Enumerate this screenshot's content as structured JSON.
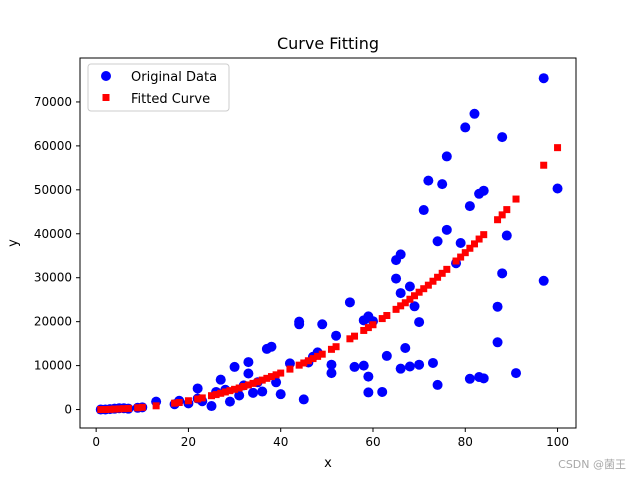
{
  "chart_data": {
    "type": "scatter",
    "title": "Curve Fitting",
    "xlabel": "x",
    "ylabel": "y",
    "xlim": [
      -3.5,
      104
    ],
    "ylim": [
      -4200,
      80000
    ],
    "xticks": [
      0,
      20,
      40,
      60,
      80,
      100
    ],
    "yticks": [
      0,
      10000,
      20000,
      30000,
      40000,
      50000,
      60000,
      70000
    ],
    "ytick_labels": [
      "0",
      "10000",
      "20000",
      "30000",
      "40000",
      "50000",
      "60000",
      "70000"
    ],
    "grid": false,
    "legend_position": "top-left",
    "series": [
      {
        "name": "Original Data",
        "marker": "circle",
        "color": "#0000ff",
        "points": [
          [
            1,
            0
          ],
          [
            2,
            0
          ],
          [
            3,
            100
          ],
          [
            4,
            200
          ],
          [
            5,
            300
          ],
          [
            6,
            300
          ],
          [
            7,
            200
          ],
          [
            9,
            400
          ],
          [
            10,
            500
          ],
          [
            13,
            1800
          ],
          [
            17,
            1200
          ],
          [
            18,
            2000
          ],
          [
            20,
            1400
          ],
          [
            22,
            4800
          ],
          [
            22,
            2500
          ],
          [
            23,
            1900
          ],
          [
            25,
            800
          ],
          [
            26,
            4000
          ],
          [
            27,
            6800
          ],
          [
            28,
            4500
          ],
          [
            29,
            1800
          ],
          [
            30,
            9700
          ],
          [
            31,
            3200
          ],
          [
            32,
            5500
          ],
          [
            33,
            8200
          ],
          [
            33,
            10800
          ],
          [
            34,
            3800
          ],
          [
            35,
            6200
          ],
          [
            36,
            4100
          ],
          [
            37,
            13800
          ],
          [
            38,
            14300
          ],
          [
            39,
            6200
          ],
          [
            40,
            3500
          ],
          [
            42,
            10500
          ],
          [
            44,
            19400
          ],
          [
            44,
            20000
          ],
          [
            45,
            2300
          ],
          [
            46,
            10700
          ],
          [
            47,
            12000
          ],
          [
            48,
            13000
          ],
          [
            49,
            19400
          ],
          [
            51,
            8300
          ],
          [
            51,
            10200
          ],
          [
            52,
            16800
          ],
          [
            55,
            24400
          ],
          [
            56,
            9700
          ],
          [
            58,
            10000
          ],
          [
            58,
            20300
          ],
          [
            59,
            21200
          ],
          [
            59,
            3900
          ],
          [
            59,
            7500
          ],
          [
            60,
            20100
          ],
          [
            62,
            4000
          ],
          [
            63,
            12200
          ],
          [
            65,
            29800
          ],
          [
            65,
            34000
          ],
          [
            66,
            35300
          ],
          [
            66,
            9300
          ],
          [
            66,
            26500
          ],
          [
            67,
            14000
          ],
          [
            68,
            28000
          ],
          [
            68,
            9800
          ],
          [
            69,
            23500
          ],
          [
            70,
            10200
          ],
          [
            70,
            19900
          ],
          [
            71,
            45400
          ],
          [
            72,
            52100
          ],
          [
            73,
            10600
          ],
          [
            74,
            5600
          ],
          [
            74,
            38300
          ],
          [
            75,
            51300
          ],
          [
            76,
            57600
          ],
          [
            76,
            40900
          ],
          [
            78,
            33300
          ],
          [
            79,
            37900
          ],
          [
            80,
            64200
          ],
          [
            81,
            46300
          ],
          [
            81,
            7000
          ],
          [
            82,
            67300
          ],
          [
            83,
            49100
          ],
          [
            83,
            7400
          ],
          [
            84,
            49800
          ],
          [
            84,
            7100
          ],
          [
            87,
            23400
          ],
          [
            87,
            15300
          ],
          [
            88,
            62000
          ],
          [
            88,
            31000
          ],
          [
            89,
            39600
          ],
          [
            91,
            8300
          ],
          [
            97,
            29300
          ],
          [
            97,
            75400
          ],
          [
            100,
            50300
          ]
        ]
      },
      {
        "name": "Fitted Curve",
        "marker": "square",
        "color": "#ff0000",
        "points": [
          [
            1,
            0
          ],
          [
            2,
            10
          ],
          [
            3,
            50
          ],
          [
            4,
            100
          ],
          [
            5,
            150
          ],
          [
            6,
            200
          ],
          [
            7,
            250
          ],
          [
            9,
            400
          ],
          [
            10,
            500
          ],
          [
            13,
            850
          ],
          [
            17,
            1450
          ],
          [
            18,
            1600
          ],
          [
            20,
            2000
          ],
          [
            22,
            2400
          ],
          [
            23,
            2650
          ],
          [
            25,
            3150
          ],
          [
            26,
            3400
          ],
          [
            27,
            3700
          ],
          [
            28,
            4000
          ],
          [
            29,
            4300
          ],
          [
            30,
            4600
          ],
          [
            31,
            4900
          ],
          [
            32,
            5250
          ],
          [
            33,
            5600
          ],
          [
            34,
            5950
          ],
          [
            35,
            6300
          ],
          [
            36,
            6700
          ],
          [
            37,
            7100
          ],
          [
            38,
            7500
          ],
          [
            39,
            7900
          ],
          [
            40,
            8300
          ],
          [
            42,
            9200
          ],
          [
            44,
            10100
          ],
          [
            45,
            10600
          ],
          [
            46,
            11100
          ],
          [
            47,
            11600
          ],
          [
            48,
            12100
          ],
          [
            49,
            12600
          ],
          [
            51,
            13700
          ],
          [
            52,
            14300
          ],
          [
            55,
            16100
          ],
          [
            56,
            16700
          ],
          [
            58,
            18000
          ],
          [
            59,
            18650
          ],
          [
            60,
            19300
          ],
          [
            62,
            20700
          ],
          [
            63,
            21400
          ],
          [
            65,
            22800
          ],
          [
            66,
            23600
          ],
          [
            67,
            24300
          ],
          [
            68,
            25100
          ],
          [
            69,
            25900
          ],
          [
            70,
            26700
          ],
          [
            71,
            27500
          ],
          [
            72,
            28300
          ],
          [
            73,
            29200
          ],
          [
            74,
            30100
          ],
          [
            75,
            31000
          ],
          [
            76,
            31900
          ],
          [
            78,
            33800
          ],
          [
            79,
            34700
          ],
          [
            80,
            35700
          ],
          [
            81,
            36700
          ],
          [
            82,
            37700
          ],
          [
            83,
            38800
          ],
          [
            84,
            39800
          ],
          [
            87,
            43200
          ],
          [
            88,
            44300
          ],
          [
            89,
            45500
          ],
          [
            91,
            47900
          ],
          [
            97,
            55600
          ],
          [
            100,
            59600
          ]
        ]
      }
    ]
  },
  "watermark": "CSDN @菌王"
}
